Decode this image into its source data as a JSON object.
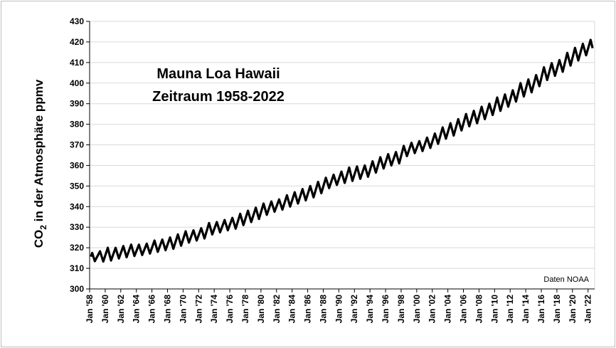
{
  "chart_data": {
    "type": "line",
    "title": "Mauna Loa Hawaii",
    "subtitle": "Zeitraum 1958-2022",
    "ylabel": {
      "prefix": "CO",
      "sub": "2",
      "rest": " in der Atmosphäre  ppmv"
    },
    "xlabel": "",
    "source_note": "Daten NOAA",
    "ylim": [
      300,
      430
    ],
    "y_ticks": [
      300,
      310,
      320,
      330,
      340,
      350,
      360,
      370,
      380,
      390,
      400,
      410,
      420,
      430
    ],
    "x_ticks": [
      "Jan '58",
      "Jan '60",
      "Jan '62",
      "Jan '64",
      "Jan '66",
      "Jan '68",
      "Jan '70",
      "Jan '72",
      "Jan '74",
      "Jan '76",
      "Jan '78",
      "Jan '80",
      "Jan '82",
      "Jan '84",
      "Jan '86",
      "Jan '88",
      "Jan '90",
      "Jan '92",
      "Jan '94",
      "Jan '96",
      "Jan '98",
      "Jan '00",
      "Jan '02",
      "Jan '04",
      "Jan '06",
      "Jan '08",
      "Jan '10",
      "Jan '12",
      "Jan '14",
      "Jan '16",
      "Jan '18",
      "Jan '20",
      "Jan '22"
    ],
    "grid": true,
    "line_color": "#000000",
    "grid_color": "#d9d9d9",
    "series": [
      {
        "values": [
          {
            "x": "1958-03",
            "y": 315.7
          },
          {
            "x": "1958-05",
            "y": 317.5
          },
          {
            "x": "1958-09",
            "y": 313.5
          },
          {
            "x": "1959-05",
            "y": 318.3
          },
          {
            "x": "1959-10",
            "y": 313.3
          },
          {
            "x": "1960-05",
            "y": 320.0
          },
          {
            "x": "1960-10",
            "y": 313.8
          },
          {
            "x": "1961-05",
            "y": 320.0
          },
          {
            "x": "1961-10",
            "y": 314.8
          },
          {
            "x": "1962-05",
            "y": 320.8
          },
          {
            "x": "1962-10",
            "y": 315.4
          },
          {
            "x": "1963-05",
            "y": 321.5
          },
          {
            "x": "1963-10",
            "y": 316.0
          },
          {
            "x": "1964-05",
            "y": 321.5
          },
          {
            "x": "1964-10",
            "y": 316.5
          },
          {
            "x": "1965-05",
            "y": 322.0
          },
          {
            "x": "1965-10",
            "y": 317.2
          },
          {
            "x": "1966-05",
            "y": 323.5
          },
          {
            "x": "1966-10",
            "y": 318.0
          },
          {
            "x": "1967-05",
            "y": 324.0
          },
          {
            "x": "1967-10",
            "y": 318.8
          },
          {
            "x": "1968-05",
            "y": 325.0
          },
          {
            "x": "1968-10",
            "y": 319.5
          },
          {
            "x": "1969-05",
            "y": 326.5
          },
          {
            "x": "1969-10",
            "y": 321.0
          },
          {
            "x": "1970-05",
            "y": 328.0
          },
          {
            "x": "1970-10",
            "y": 322.5
          },
          {
            "x": "1971-05",
            "y": 328.5
          },
          {
            "x": "1971-10",
            "y": 323.5
          },
          {
            "x": "1972-05",
            "y": 329.5
          },
          {
            "x": "1972-10",
            "y": 324.5
          },
          {
            "x": "1973-05",
            "y": 332.0
          },
          {
            "x": "1973-10",
            "y": 326.5
          },
          {
            "x": "1974-05",
            "y": 332.5
          },
          {
            "x": "1974-10",
            "y": 327.5
          },
          {
            "x": "1975-05",
            "y": 333.5
          },
          {
            "x": "1975-10",
            "y": 328.5
          },
          {
            "x": "1976-05",
            "y": 334.5
          },
          {
            "x": "1976-10",
            "y": 329.3
          },
          {
            "x": "1977-05",
            "y": 336.5
          },
          {
            "x": "1977-10",
            "y": 331.0
          },
          {
            "x": "1978-05",
            "y": 338.0
          },
          {
            "x": "1978-10",
            "y": 332.5
          },
          {
            "x": "1979-05",
            "y": 339.5
          },
          {
            "x": "1979-10",
            "y": 334.0
          },
          {
            "x": "1980-05",
            "y": 341.5
          },
          {
            "x": "1980-10",
            "y": 336.0
          },
          {
            "x": "1981-05",
            "y": 342.5
          },
          {
            "x": "1981-10",
            "y": 337.5
          },
          {
            "x": "1982-05",
            "y": 343.5
          },
          {
            "x": "1982-10",
            "y": 338.5
          },
          {
            "x": "1983-05",
            "y": 345.5
          },
          {
            "x": "1983-10",
            "y": 340.0
          },
          {
            "x": "1984-05",
            "y": 347.0
          },
          {
            "x": "1984-10",
            "y": 341.5
          },
          {
            "x": "1985-05",
            "y": 348.5
          },
          {
            "x": "1985-10",
            "y": 343.0
          },
          {
            "x": "1986-05",
            "y": 350.0
          },
          {
            "x": "1986-10",
            "y": 344.5
          },
          {
            "x": "1987-05",
            "y": 352.0
          },
          {
            "x": "1987-10",
            "y": 346.5
          },
          {
            "x": "1988-05",
            "y": 354.0
          },
          {
            "x": "1988-10",
            "y": 349.0
          },
          {
            "x": "1989-05",
            "y": 355.5
          },
          {
            "x": "1989-10",
            "y": 350.5
          },
          {
            "x": "1990-05",
            "y": 357.0
          },
          {
            "x": "1990-10",
            "y": 351.5
          },
          {
            "x": "1991-05",
            "y": 359.0
          },
          {
            "x": "1991-10",
            "y": 352.5
          },
          {
            "x": "1992-05",
            "y": 359.5
          },
          {
            "x": "1992-10",
            "y": 353.5
          },
          {
            "x": "1993-05",
            "y": 360.0
          },
          {
            "x": "1993-10",
            "y": 354.5
          },
          {
            "x": "1994-05",
            "y": 362.0
          },
          {
            "x": "1994-10",
            "y": 356.5
          },
          {
            "x": "1995-05",
            "y": 364.0
          },
          {
            "x": "1995-10",
            "y": 358.5
          },
          {
            "x": "1996-05",
            "y": 365.5
          },
          {
            "x": "1996-10",
            "y": 360.0
          },
          {
            "x": "1997-05",
            "y": 366.5
          },
          {
            "x": "1997-10",
            "y": 361.0
          },
          {
            "x": "1998-05",
            "y": 369.5
          },
          {
            "x": "1998-10",
            "y": 364.5
          },
          {
            "x": "1999-05",
            "y": 371.0
          },
          {
            "x": "1999-10",
            "y": 366.0
          },
          {
            "x": "2000-05",
            "y": 371.8
          },
          {
            "x": "2000-10",
            "y": 367.0
          },
          {
            "x": "2001-05",
            "y": 373.5
          },
          {
            "x": "2001-10",
            "y": 368.5
          },
          {
            "x": "2002-05",
            "y": 375.5
          },
          {
            "x": "2002-10",
            "y": 370.5
          },
          {
            "x": "2003-05",
            "y": 378.5
          },
          {
            "x": "2003-10",
            "y": 373.0
          },
          {
            "x": "2004-05",
            "y": 380.5
          },
          {
            "x": "2004-10",
            "y": 374.5
          },
          {
            "x": "2005-05",
            "y": 382.5
          },
          {
            "x": "2005-10",
            "y": 377.0
          },
          {
            "x": "2006-05",
            "y": 385.0
          },
          {
            "x": "2006-10",
            "y": 379.0
          },
          {
            "x": "2007-05",
            "y": 386.5
          },
          {
            "x": "2007-10",
            "y": 380.5
          },
          {
            "x": "2008-05",
            "y": 388.5
          },
          {
            "x": "2008-10",
            "y": 382.5
          },
          {
            "x": "2009-05",
            "y": 390.0
          },
          {
            "x": "2009-10",
            "y": 384.5
          },
          {
            "x": "2010-05",
            "y": 393.0
          },
          {
            "x": "2010-10",
            "y": 386.5
          },
          {
            "x": "2011-05",
            "y": 394.5
          },
          {
            "x": "2011-10",
            "y": 388.5
          },
          {
            "x": "2012-05",
            "y": 396.5
          },
          {
            "x": "2012-10",
            "y": 391.0
          },
          {
            "x": "2013-05",
            "y": 400.0
          },
          {
            "x": "2013-10",
            "y": 393.5
          },
          {
            "x": "2014-05",
            "y": 401.8
          },
          {
            "x": "2014-10",
            "y": 395.5
          },
          {
            "x": "2015-05",
            "y": 403.9
          },
          {
            "x": "2015-10",
            "y": 398.5
          },
          {
            "x": "2016-05",
            "y": 407.7
          },
          {
            "x": "2016-10",
            "y": 401.5
          },
          {
            "x": "2017-05",
            "y": 409.7
          },
          {
            "x": "2017-10",
            "y": 403.5
          },
          {
            "x": "2018-05",
            "y": 411.2
          },
          {
            "x": "2018-10",
            "y": 405.5
          },
          {
            "x": "2019-05",
            "y": 414.7
          },
          {
            "x": "2019-10",
            "y": 408.5
          },
          {
            "x": "2020-05",
            "y": 417.1
          },
          {
            "x": "2020-10",
            "y": 411.0
          },
          {
            "x": "2021-05",
            "y": 419.1
          },
          {
            "x": "2021-10",
            "y": 413.5
          },
          {
            "x": "2022-05",
            "y": 421.0
          },
          {
            "x": "2022-08",
            "y": 417.0
          }
        ]
      }
    ]
  }
}
